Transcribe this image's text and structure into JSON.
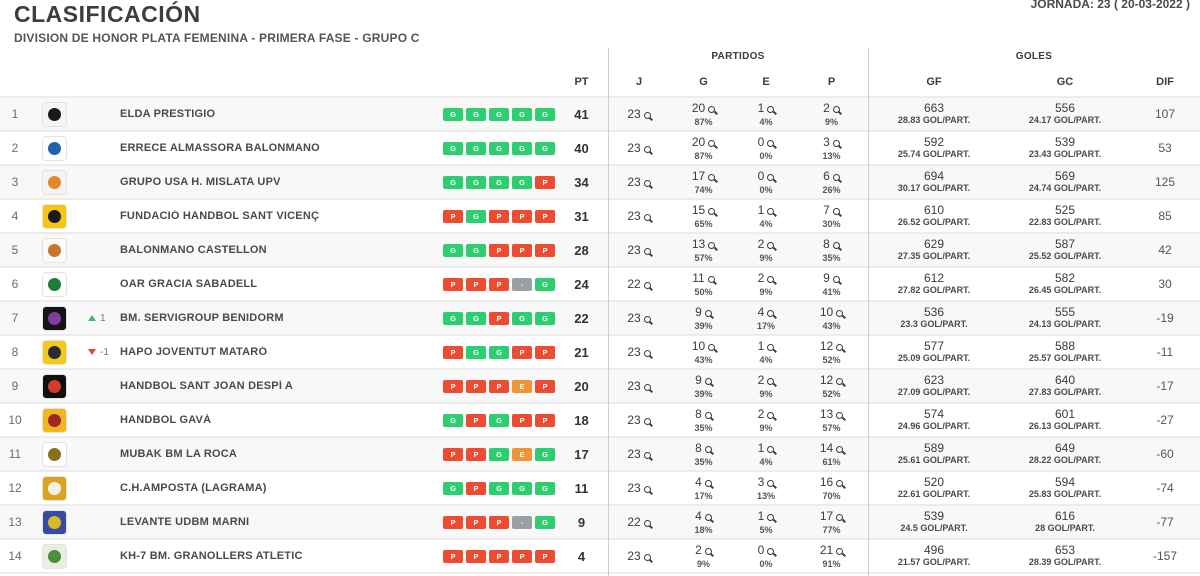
{
  "header": {
    "title": "CLASIFICACIÓN",
    "subtitle": "DIVISION DE HONOR PLATA FEMENINA - PRIMERA FASE - GRUPO C",
    "jornada": "JORNADA: 23 ( 20-03-2022 )"
  },
  "table": {
    "group_headers": {
      "partidos": "PARTIDOS",
      "goles": "GOLES"
    },
    "columns": {
      "pt": "PT",
      "j": "J",
      "g": "G",
      "e": "E",
      "p": "P",
      "gf": "GF",
      "gc": "GC",
      "dif": "DIF"
    },
    "badge_colors": {
      "G": "#2dce70",
      "P": "#ee4b33",
      "E": "#f09339",
      "-": "#9aa0a3"
    },
    "movement_colors": {
      "up": "#44b86a",
      "down": "#e0493a"
    },
    "rows": [
      {
        "pos": 1,
        "team": "ELDA PRESTIGIO",
        "movement": null,
        "form": [
          "G",
          "G",
          "G",
          "G",
          "G"
        ],
        "pt": 41,
        "j": 23,
        "g": 20,
        "g_pct": "87%",
        "e": 1,
        "e_pct": "4%",
        "p": 2,
        "p_pct": "9%",
        "gf": 663,
        "gf_avg": "28.83 GOL/PART.",
        "gc": 556,
        "gc_avg": "24.17 GOL/PART.",
        "dif": 107,
        "logo": {
          "bg": "#f5f5f5",
          "fg": "#1a1a1a"
        }
      },
      {
        "pos": 2,
        "team": "ERRECE ALMASSORA BALONMANO",
        "movement": null,
        "form": [
          "G",
          "G",
          "G",
          "G",
          "G"
        ],
        "pt": 40,
        "j": 23,
        "g": 20,
        "g_pct": "87%",
        "e": 0,
        "e_pct": "0%",
        "p": 3,
        "p_pct": "13%",
        "gf": 592,
        "gf_avg": "25.74 GOL/PART.",
        "gc": 539,
        "gc_avg": "23.43 GOL/PART.",
        "dif": 53,
        "logo": {
          "bg": "#ffffff",
          "fg": "#1f63b0"
        }
      },
      {
        "pos": 3,
        "team": "GRUPO USA H. MISLATA UPV",
        "movement": null,
        "form": [
          "G",
          "G",
          "G",
          "G",
          "P"
        ],
        "pt": 34,
        "j": 23,
        "g": 17,
        "g_pct": "74%",
        "e": 0,
        "e_pct": "0%",
        "p": 6,
        "p_pct": "26%",
        "gf": 694,
        "gf_avg": "30.17 GOL/PART.",
        "gc": 569,
        "gc_avg": "24.74 GOL/PART.",
        "dif": 125,
        "logo": {
          "bg": "#f5f5f5",
          "fg": "#e8842c"
        }
      },
      {
        "pos": 4,
        "team": "FUNDACIÓ HANDBOL SANT VICENÇ",
        "movement": null,
        "form": [
          "P",
          "G",
          "P",
          "P",
          "P"
        ],
        "pt": 31,
        "j": 23,
        "g": 15,
        "g_pct": "65%",
        "e": 1,
        "e_pct": "4%",
        "p": 7,
        "p_pct": "30%",
        "gf": 610,
        "gf_avg": "26.52 GOL/PART.",
        "gc": 525,
        "gc_avg": "22.83 GOL/PART.",
        "dif": 85,
        "logo": {
          "bg": "#f6c614",
          "fg": "#1a1a1a"
        }
      },
      {
        "pos": 5,
        "team": "BALONMANO CASTELLON",
        "movement": null,
        "form": [
          "G",
          "G",
          "P",
          "P",
          "P"
        ],
        "pt": 28,
        "j": 23,
        "g": 13,
        "g_pct": "57%",
        "e": 2,
        "e_pct": "9%",
        "p": 8,
        "p_pct": "35%",
        "gf": 629,
        "gf_avg": "27.35 GOL/PART.",
        "gc": 587,
        "gc_avg": "25.52 GOL/PART.",
        "dif": 42,
        "logo": {
          "bg": "#fafafa",
          "fg": "#c9752e"
        }
      },
      {
        "pos": 6,
        "team": "OAR GRACIA SABADELL",
        "movement": null,
        "form": [
          "P",
          "P",
          "P",
          "-",
          "G"
        ],
        "pt": 24,
        "j": 22,
        "g": 11,
        "g_pct": "50%",
        "e": 2,
        "e_pct": "9%",
        "p": 9,
        "p_pct": "41%",
        "gf": 612,
        "gf_avg": "27.82 GOL/PART.",
        "gc": 582,
        "gc_avg": "26.45 GOL/PART.",
        "dif": 30,
        "logo": {
          "bg": "#ffffff",
          "fg": "#1e7d3c"
        }
      },
      {
        "pos": 7,
        "team": "BM. SERVIGROUP BENIDORM",
        "movement": {
          "dir": "up",
          "label": "1"
        },
        "form": [
          "G",
          "G",
          "P",
          "G",
          "G"
        ],
        "pt": 22,
        "j": 23,
        "g": 9,
        "g_pct": "39%",
        "e": 4,
        "e_pct": "17%",
        "p": 10,
        "p_pct": "43%",
        "gf": 536,
        "gf_avg": "23.3 GOL/PART.",
        "gc": 555,
        "gc_avg": "24.13 GOL/PART.",
        "dif": -19,
        "logo": {
          "bg": "#141414",
          "fg": "#7b3fa0"
        }
      },
      {
        "pos": 8,
        "team": "HAPO JOVENTUT MATARÓ",
        "movement": {
          "dir": "down",
          "label": "-1"
        },
        "form": [
          "P",
          "G",
          "G",
          "P",
          "P"
        ],
        "pt": 21,
        "j": 23,
        "g": 10,
        "g_pct": "43%",
        "e": 1,
        "e_pct": "4%",
        "p": 12,
        "p_pct": "52%",
        "gf": 577,
        "gf_avg": "25.09 GOL/PART.",
        "gc": 588,
        "gc_avg": "25.57 GOL/PART.",
        "dif": -11,
        "logo": {
          "bg": "#f3c91d",
          "fg": "#2b2b2b"
        }
      },
      {
        "pos": 9,
        "team": "HANDBOL SANT JOAN DESPÍ A",
        "movement": null,
        "form": [
          "P",
          "P",
          "P",
          "E",
          "P"
        ],
        "pt": 20,
        "j": 23,
        "g": 9,
        "g_pct": "39%",
        "e": 2,
        "e_pct": "9%",
        "p": 12,
        "p_pct": "52%",
        "gf": 623,
        "gf_avg": "27.09 GOL/PART.",
        "gc": 640,
        "gc_avg": "27.83 GOL/PART.",
        "dif": -17,
        "logo": {
          "bg": "#101010",
          "fg": "#d33b2f"
        }
      },
      {
        "pos": 10,
        "team": "HANDBOL GAVÀ",
        "movement": null,
        "form": [
          "G",
          "P",
          "G",
          "P",
          "P"
        ],
        "pt": 18,
        "j": 23,
        "g": 8,
        "g_pct": "35%",
        "e": 2,
        "e_pct": "9%",
        "p": 13,
        "p_pct": "57%",
        "gf": 574,
        "gf_avg": "24.96 GOL/PART.",
        "gc": 601,
        "gc_avg": "26.13 GOL/PART.",
        "dif": -27,
        "logo": {
          "bg": "#f0b61f",
          "fg": "#a02822"
        }
      },
      {
        "pos": 11,
        "team": "MUBAK BM LA ROCA",
        "movement": null,
        "form": [
          "P",
          "P",
          "G",
          "E",
          "G"
        ],
        "pt": 17,
        "j": 23,
        "g": 8,
        "g_pct": "35%",
        "e": 1,
        "e_pct": "4%",
        "p": 14,
        "p_pct": "61%",
        "gf": 589,
        "gf_avg": "25.61 GOL/PART.",
        "gc": 649,
        "gc_avg": "28.22 GOL/PART.",
        "dif": -60,
        "logo": {
          "bg": "#ffffff",
          "fg": "#8a6d1f"
        }
      },
      {
        "pos": 12,
        "team": "C.H.AMPOSTA (LAGRAMA)",
        "movement": null,
        "form": [
          "G",
          "P",
          "G",
          "G",
          "G"
        ],
        "pt": 11,
        "j": 23,
        "g": 4,
        "g_pct": "17%",
        "e": 3,
        "e_pct": "13%",
        "p": 16,
        "p_pct": "70%",
        "gf": 520,
        "gf_avg": "22.61 GOL/PART.",
        "gc": 594,
        "gc_avg": "25.83 GOL/PART.",
        "dif": -74,
        "logo": {
          "bg": "#d9a520",
          "fg": "#f0f0f0"
        }
      },
      {
        "pos": 13,
        "team": "LEVANTE UDBM MARNI",
        "movement": null,
        "form": [
          "P",
          "P",
          "P",
          "-",
          "G"
        ],
        "pt": 9,
        "j": 22,
        "g": 4,
        "g_pct": "18%",
        "e": 1,
        "e_pct": "5%",
        "p": 17,
        "p_pct": "77%",
        "gf": 539,
        "gf_avg": "24.5 GOL/PART.",
        "gc": 616,
        "gc_avg": "28 GOL/PART.",
        "dif": -77,
        "logo": {
          "bg": "#3b4aa0",
          "fg": "#d8b92a"
        }
      },
      {
        "pos": 14,
        "team": "KH-7 BM. GRANOLLERS ATLETIC",
        "movement": null,
        "form": [
          "P",
          "P",
          "P",
          "P",
          "P"
        ],
        "pt": 4,
        "j": 23,
        "g": 2,
        "g_pct": "9%",
        "e": 0,
        "e_pct": "0%",
        "p": 21,
        "p_pct": "91%",
        "gf": 496,
        "gf_avg": "21.57 GOL/PART.",
        "gc": 653,
        "gc_avg": "28.39 GOL/PART.",
        "dif": -157,
        "logo": {
          "bg": "#e8efe0",
          "fg": "#4c8f3a"
        }
      }
    ]
  }
}
